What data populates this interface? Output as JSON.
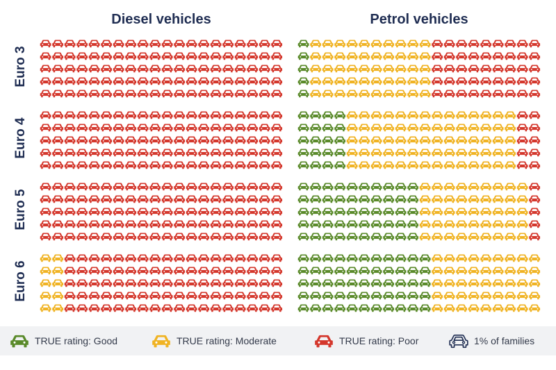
{
  "panels": [
    {
      "title": "Diesel vehicles"
    },
    {
      "title": "Petrol vehicles"
    }
  ],
  "rows": [
    "Euro 3",
    "Euro 4",
    "Euro 5",
    "Euro 6"
  ],
  "legend": [
    {
      "label": "TRUE rating: Good",
      "icon": "car-icon",
      "color": "#5a8a2a"
    },
    {
      "label": "TRUE rating: Moderate",
      "icon": "car-icon",
      "color": "#f0b323"
    },
    {
      "label": "TRUE rating: Poor",
      "icon": "car-icon",
      "color": "#d4372c"
    },
    {
      "label": "1% of families",
      "icon": "car-outline-icon",
      "color": "#1f2d52"
    }
  ],
  "chart_data": {
    "type": "waffle",
    "unit": "1% of families",
    "categories": [
      "Euro 3",
      "Euro 4",
      "Euro 5",
      "Euro 6"
    ],
    "groups": [
      "Diesel vehicles",
      "Petrol vehicles"
    ],
    "ratings": [
      "Good",
      "Moderate",
      "Poor"
    ],
    "colors": {
      "Good": "#5a8a2a",
      "Moderate": "#f0b323",
      "Poor": "#d4372c"
    },
    "grid": {
      "columns": 20,
      "rows": 5
    },
    "series": [
      {
        "group": "Diesel vehicles",
        "category": "Euro 3",
        "Good": 0,
        "Moderate": 0,
        "Poor": 100
      },
      {
        "group": "Diesel vehicles",
        "category": "Euro 4",
        "Good": 0,
        "Moderate": 0,
        "Poor": 100
      },
      {
        "group": "Diesel vehicles",
        "category": "Euro 5",
        "Good": 0,
        "Moderate": 0,
        "Poor": 100
      },
      {
        "group": "Diesel vehicles",
        "category": "Euro 6",
        "Good": 0,
        "Moderate": 9,
        "Poor": 91
      },
      {
        "group": "Petrol vehicles",
        "category": "Euro 3",
        "Good": 3,
        "Moderate": 53,
        "Poor": 44
      },
      {
        "group": "Petrol vehicles",
        "category": "Euro 4",
        "Good": 20,
        "Moderate": 72,
        "Poor": 8
      },
      {
        "group": "Petrol vehicles",
        "category": "Euro 5",
        "Good": 51,
        "Moderate": 46,
        "Poor": 3
      },
      {
        "group": "Petrol vehicles",
        "category": "Euro 6",
        "Good": 57,
        "Moderate": 43,
        "Poor": 0
      }
    ]
  }
}
